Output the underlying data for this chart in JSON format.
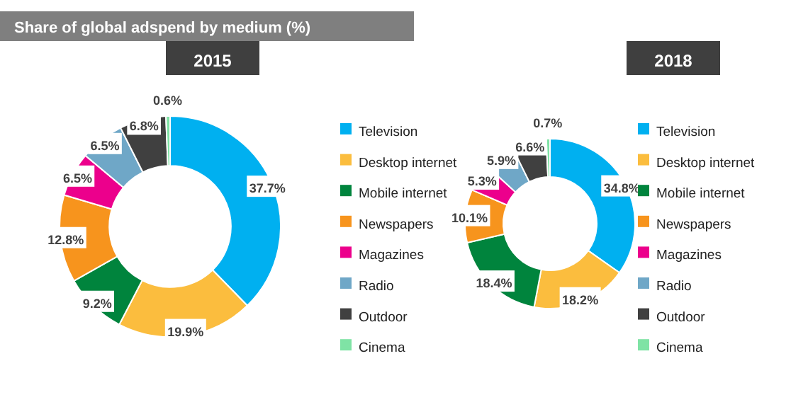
{
  "chart_data": [
    {
      "type": "donut",
      "title": "2015",
      "annotations": [
        "Share of global adspend by medium (%)"
      ],
      "categories": [
        "Television",
        "Desktop internet",
        "Mobile internet",
        "Newspapers",
        "Magazines",
        "Radio",
        "Outdoor",
        "Cinema"
      ],
      "values": [
        37.7,
        19.9,
        9.2,
        12.8,
        6.5,
        6.5,
        6.8,
        0.6
      ],
      "value_labels": [
        "37.7%",
        "19.9%",
        "9.2%",
        "12.8%",
        "6.5%",
        "6.5%",
        "6.8%",
        "0.6%"
      ],
      "colors": [
        "#00b0f0",
        "#fbbd3e",
        "#00843d",
        "#f7941d",
        "#ec008c",
        "#6fa7c7",
        "#404040",
        "#7fe3a5"
      ],
      "legend": "right"
    },
    {
      "type": "donut",
      "title": "2018",
      "categories": [
        "Television",
        "Desktop internet",
        "Mobile internet",
        "Newspapers",
        "Magazines",
        "Radio",
        "Outdoor",
        "Cinema"
      ],
      "values": [
        34.8,
        18.2,
        18.4,
        10.1,
        5.3,
        5.9,
        6.6,
        0.7
      ],
      "value_labels": [
        "34.8%",
        "18.2%",
        "18.4%",
        "10.1%",
        "5.3%",
        "5.9%",
        "6.6%",
        "0.7%"
      ],
      "colors": [
        "#00b0f0",
        "#fbbd3e",
        "#00843d",
        "#f7941d",
        "#ec008c",
        "#6fa7c7",
        "#404040",
        "#7fe3a5"
      ],
      "legend": "right"
    }
  ]
}
